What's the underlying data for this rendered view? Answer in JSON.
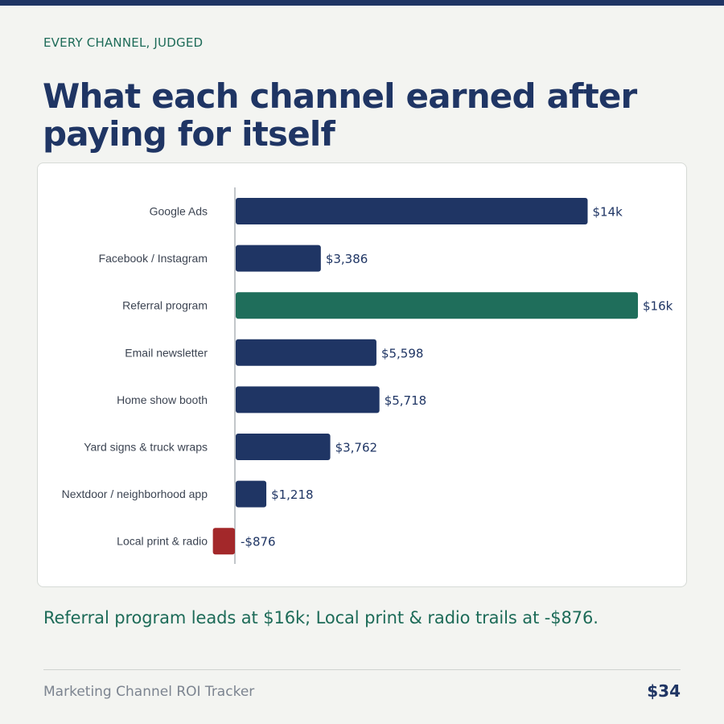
{
  "header": {
    "eyebrow": "EVERY CHANNEL, JUDGED",
    "title": "What each channel earned after paying for itself"
  },
  "colors": {
    "positive": "#1f3564",
    "highlight": "#1f6e5b",
    "negative": "#a3282a"
  },
  "chart_data": {
    "type": "bar",
    "orientation": "horizontal",
    "categories": [
      "Google Ads",
      "Facebook / Instagram",
      "Referral program",
      "Email newsletter",
      "Home show booth",
      "Yard signs & truck wraps",
      "Nextdoor / neighborhood app",
      "Local print & radio"
    ],
    "values": [
      14000,
      3386,
      16000,
      5598,
      5718,
      3762,
      1218,
      -876
    ],
    "value_labels": [
      "$14k",
      "$3,386",
      "$16k",
      "$5,598",
      "$5,718",
      "$3,762",
      "$1,218",
      "-$876"
    ],
    "highlight_index": 2,
    "negative_index": 7,
    "xlim": [
      -876,
      16000
    ],
    "grid": false,
    "legend": "none"
  },
  "takeaway": "Referral program leads at $16k; Local print & radio trails at -$876.",
  "footer": {
    "title": "Marketing Channel ROI Tracker",
    "value": "$34"
  }
}
